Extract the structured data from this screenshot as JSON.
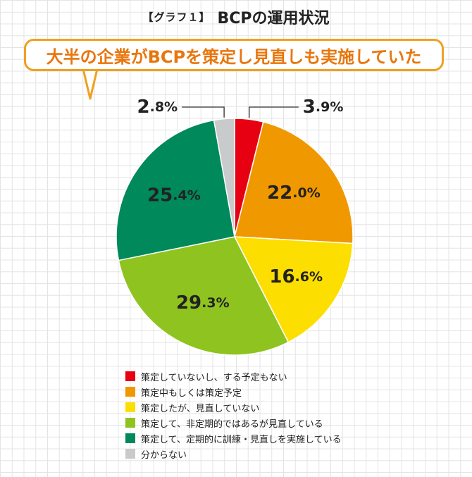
{
  "header": {
    "tag": "【グラフ１】",
    "title": "BCPの運用状況"
  },
  "callout": {
    "text": "大半の企業がBCPを策定し見直しも実施していた",
    "border_color": "#f0a020",
    "text_color": "#e8760c"
  },
  "chart_data": {
    "type": "pie",
    "title": "BCPの運用状況",
    "start": "12 o'clock",
    "direction": "clockwise",
    "slices": [
      {
        "label": "策定していないし、する予定もない",
        "value": 3.9,
        "value_label": "3.9%",
        "color": "#e60012"
      },
      {
        "label": "策定中もしくは策定予定",
        "value": 22.0,
        "value_label": "22.0%",
        "color": "#f09800"
      },
      {
        "label": "策定したが、見直していない",
        "value": 16.6,
        "value_label": "16.6%",
        "color": "#fcde00"
      },
      {
        "label": "策定して、非定期的ではあるが見直している",
        "value": 29.3,
        "value_label": "29.3%",
        "color": "#8fc31f"
      },
      {
        "label": "策定して、定期的に訓練・見直しを実施している",
        "value": 25.4,
        "value_label": "25.4%",
        "color": "#00895a"
      },
      {
        "label": "分からない",
        "value": 2.8,
        "value_label": "2.8%",
        "color": "#c9cacb"
      }
    ],
    "legend_position": "bottom",
    "grid": true
  }
}
